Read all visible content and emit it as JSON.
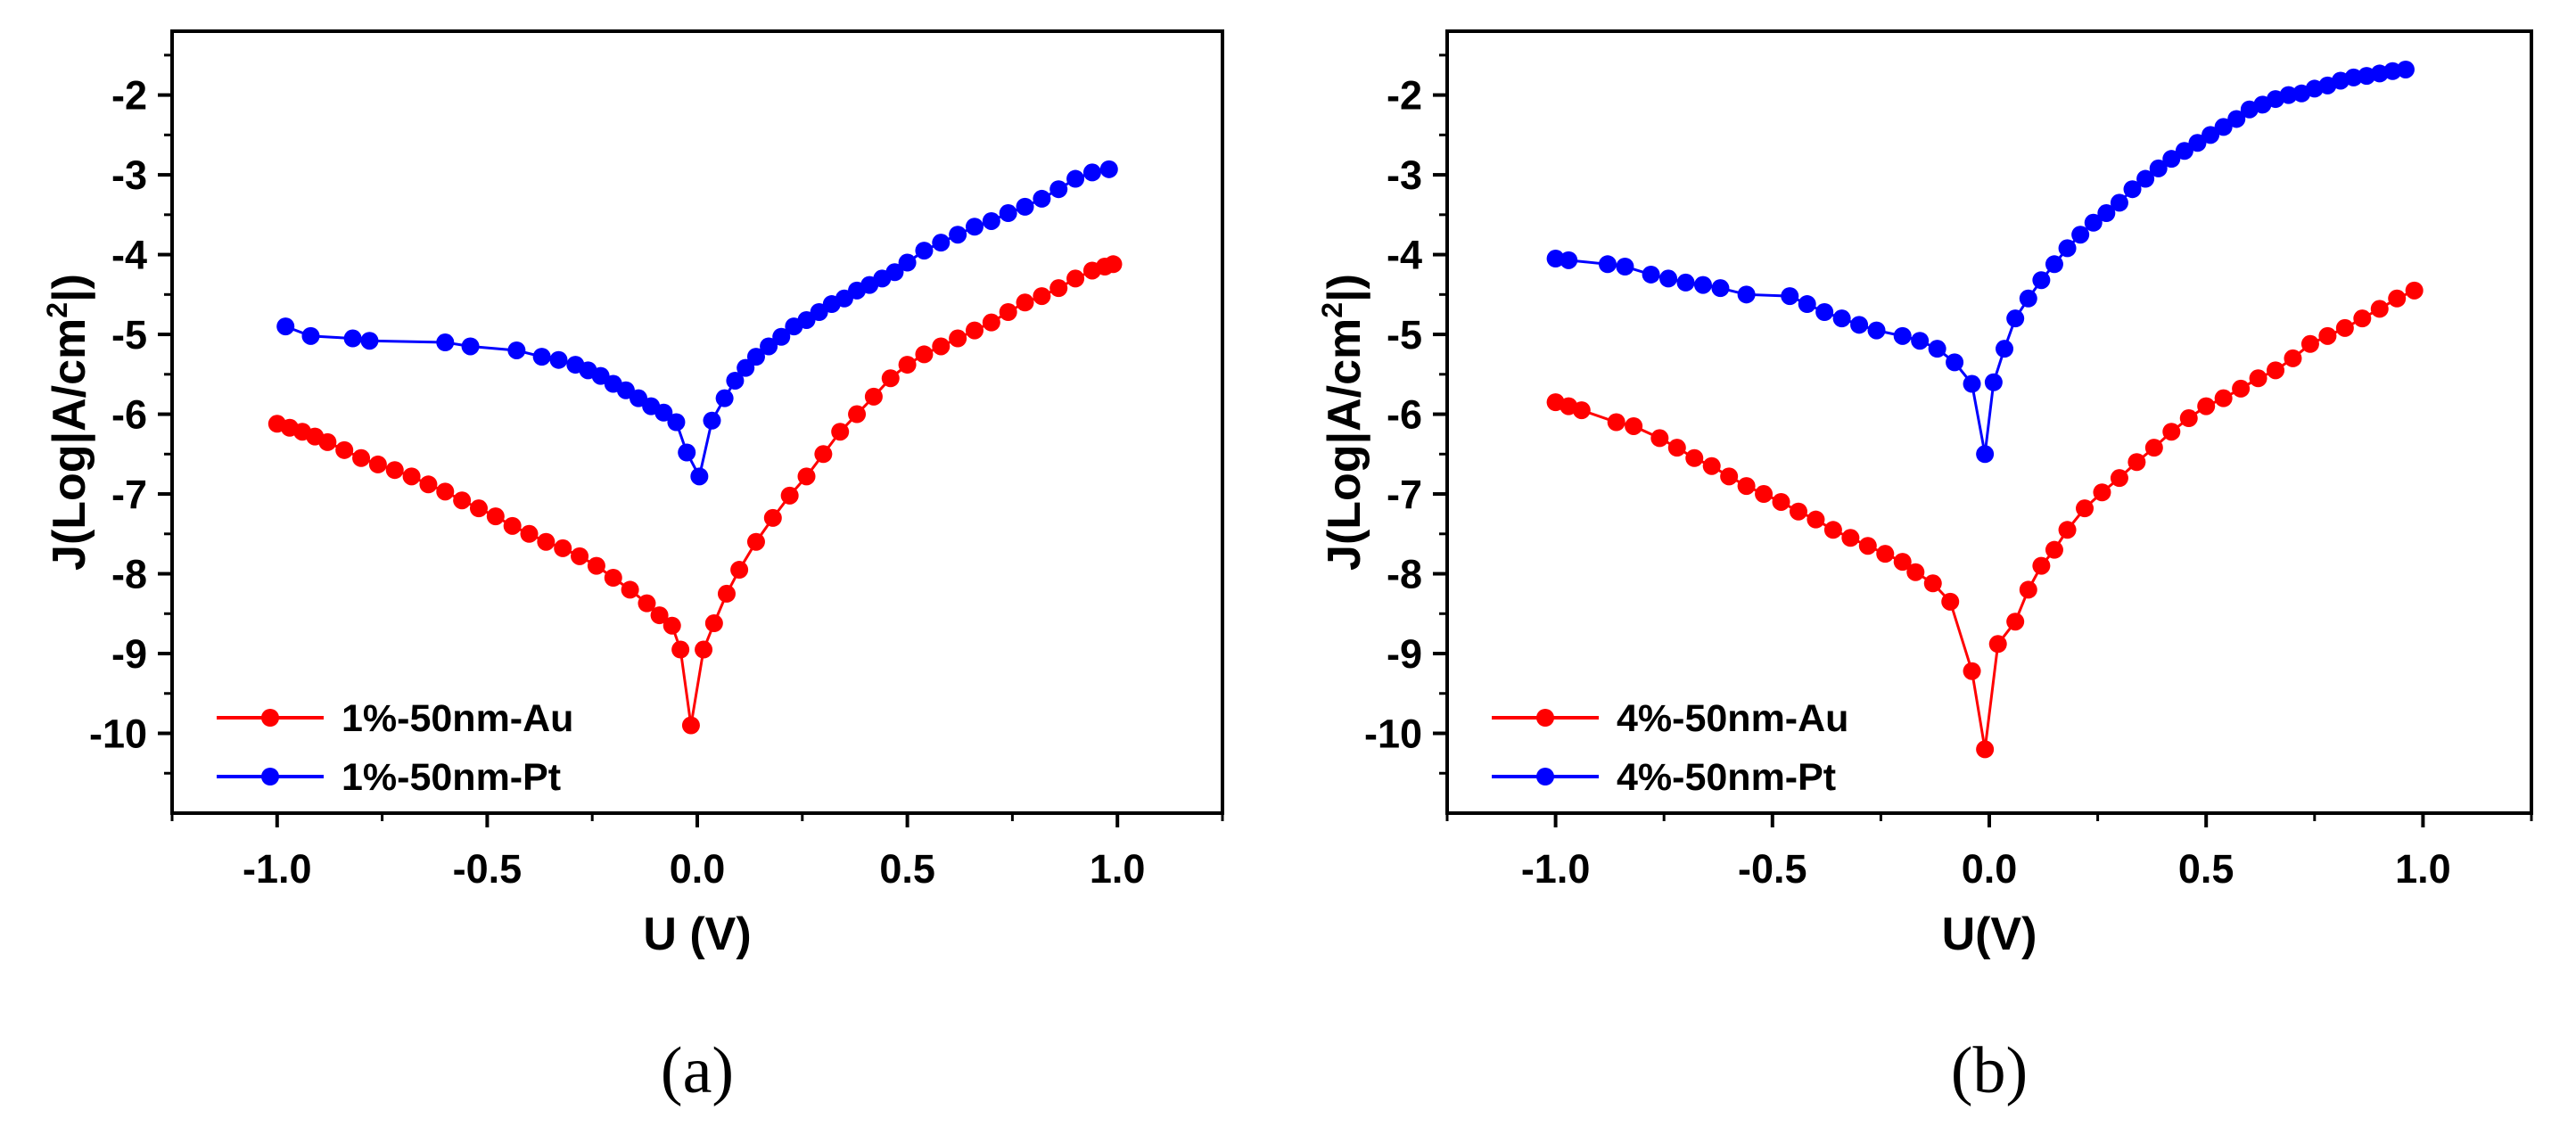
{
  "chart_data": [
    {
      "type": "line",
      "panel_label": "(a)",
      "xlabel": "U (V)",
      "ylabel": {
        "prefix": "J(Log|A/cm",
        "sup": "2",
        "suffix": "|)"
      },
      "xlim": [
        -1.25,
        1.25
      ],
      "ylim": [
        -11,
        -1.2
      ],
      "xticks": [
        -1.0,
        -0.5,
        0.0,
        0.5,
        1.0
      ],
      "xtick_labels": [
        "-1.0",
        "-0.5",
        "0.0",
        "0.5",
        "1.0"
      ],
      "yticks": [
        -2,
        -3,
        -4,
        -5,
        -6,
        -7,
        -8,
        -9,
        -10
      ],
      "ytick_labels": [
        "-2",
        "-3",
        "-4",
        "-5",
        "-6",
        "-7",
        "-8",
        "-9",
        "-10"
      ],
      "grid": false,
      "legend_position": "bottom-left",
      "series": [
        {
          "name": "1%-50nm-Au",
          "color": "#ff0000",
          "x": [
            -1.0,
            -0.97,
            -0.94,
            -0.91,
            -0.88,
            -0.84,
            -0.8,
            -0.76,
            -0.72,
            -0.68,
            -0.64,
            -0.6,
            -0.56,
            -0.52,
            -0.48,
            -0.44,
            -0.4,
            -0.36,
            -0.32,
            -0.28,
            -0.24,
            -0.2,
            -0.16,
            -0.12,
            -0.09,
            -0.06,
            -0.04,
            -0.015,
            0.015,
            0.04,
            0.07,
            0.1,
            0.14,
            0.18,
            0.22,
            0.26,
            0.3,
            0.34,
            0.38,
            0.42,
            0.46,
            0.5,
            0.54,
            0.58,
            0.62,
            0.66,
            0.7,
            0.74,
            0.78,
            0.82,
            0.86,
            0.9,
            0.94,
            0.97,
            0.99
          ],
          "y": [
            -6.12,
            -6.17,
            -6.22,
            -6.28,
            -6.35,
            -6.45,
            -6.55,
            -6.63,
            -6.7,
            -6.78,
            -6.88,
            -6.97,
            -7.08,
            -7.18,
            -7.28,
            -7.4,
            -7.5,
            -7.6,
            -7.68,
            -7.78,
            -7.9,
            -8.05,
            -8.2,
            -8.37,
            -8.52,
            -8.65,
            -8.95,
            -9.9,
            -8.95,
            -8.62,
            -8.25,
            -7.95,
            -7.6,
            -7.3,
            -7.02,
            -6.78,
            -6.5,
            -6.22,
            -6.0,
            -5.78,
            -5.55,
            -5.38,
            -5.25,
            -5.15,
            -5.05,
            -4.95,
            -4.85,
            -4.72,
            -4.6,
            -4.52,
            -4.42,
            -4.3,
            -4.2,
            -4.15,
            -4.12
          ]
        },
        {
          "name": "1%-50nm-Pt",
          "color": "#0000ff",
          "x": [
            -0.98,
            -0.92,
            -0.82,
            -0.78,
            -0.6,
            -0.54,
            -0.43,
            -0.37,
            -0.33,
            -0.29,
            -0.26,
            -0.23,
            -0.2,
            -0.17,
            -0.14,
            -0.11,
            -0.08,
            -0.05,
            -0.025,
            0.005,
            0.035,
            0.065,
            0.09,
            0.115,
            0.14,
            0.17,
            0.2,
            0.23,
            0.26,
            0.29,
            0.32,
            0.35,
            0.38,
            0.41,
            0.44,
            0.47,
            0.5,
            0.54,
            0.58,
            0.62,
            0.66,
            0.7,
            0.74,
            0.78,
            0.82,
            0.86,
            0.9,
            0.94,
            0.98
          ],
          "y": [
            -4.9,
            -5.02,
            -5.05,
            -5.08,
            -5.1,
            -5.15,
            -5.2,
            -5.28,
            -5.32,
            -5.38,
            -5.45,
            -5.52,
            -5.62,
            -5.7,
            -5.8,
            -5.9,
            -5.98,
            -6.1,
            -6.48,
            -6.78,
            -6.08,
            -5.8,
            -5.58,
            -5.42,
            -5.28,
            -5.15,
            -5.03,
            -4.9,
            -4.82,
            -4.72,
            -4.62,
            -4.55,
            -4.45,
            -4.38,
            -4.3,
            -4.22,
            -4.1,
            -3.95,
            -3.85,
            -3.75,
            -3.65,
            -3.58,
            -3.48,
            -3.4,
            -3.3,
            -3.18,
            -3.05,
            -2.97,
            -2.93
          ]
        }
      ]
    },
    {
      "type": "line",
      "panel_label": "(b)",
      "xlabel": "U(V)",
      "ylabel": {
        "prefix": "J(Log|A/cm",
        "sup": "2",
        "suffix": "|)"
      },
      "xlim": [
        -1.25,
        1.25
      ],
      "ylim": [
        -11,
        -1.2
      ],
      "xticks": [
        -1.0,
        -0.5,
        0.0,
        0.5,
        1.0
      ],
      "xtick_labels": [
        "-1.0",
        "-0.5",
        "0.0",
        "0.5",
        "1.0"
      ],
      "yticks": [
        -2,
        -3,
        -4,
        -5,
        -6,
        -7,
        -8,
        -9,
        -10
      ],
      "ytick_labels": [
        "-2",
        "-3",
        "-4",
        "-5",
        "-6",
        "-7",
        "-8",
        "-9",
        "-10"
      ],
      "grid": false,
      "legend_position": "bottom-left",
      "series": [
        {
          "name": "4%-50nm-Au",
          "color": "#ff0000",
          "x": [
            -1.0,
            -0.97,
            -0.94,
            -0.86,
            -0.82,
            -0.76,
            -0.72,
            -0.68,
            -0.64,
            -0.6,
            -0.56,
            -0.52,
            -0.48,
            -0.44,
            -0.4,
            -0.36,
            -0.32,
            -0.28,
            -0.24,
            -0.2,
            -0.17,
            -0.13,
            -0.09,
            -0.04,
            -0.01,
            0.02,
            0.06,
            0.09,
            0.12,
            0.15,
            0.18,
            0.22,
            0.26,
            0.3,
            0.34,
            0.38,
            0.42,
            0.46,
            0.5,
            0.54,
            0.58,
            0.62,
            0.66,
            0.7,
            0.74,
            0.78,
            0.82,
            0.86,
            0.9,
            0.94,
            0.98
          ],
          "y": [
            -5.85,
            -5.9,
            -5.95,
            -6.1,
            -6.15,
            -6.3,
            -6.42,
            -6.55,
            -6.65,
            -6.78,
            -6.9,
            -7.0,
            -7.1,
            -7.22,
            -7.32,
            -7.45,
            -7.55,
            -7.65,
            -7.75,
            -7.85,
            -7.98,
            -8.12,
            -8.35,
            -9.22,
            -10.2,
            -8.88,
            -8.6,
            -8.2,
            -7.9,
            -7.7,
            -7.45,
            -7.18,
            -6.98,
            -6.8,
            -6.6,
            -6.42,
            -6.22,
            -6.05,
            -5.9,
            -5.8,
            -5.68,
            -5.55,
            -5.45,
            -5.3,
            -5.12,
            -5.02,
            -4.92,
            -4.8,
            -4.68,
            -4.55,
            -4.45
          ]
        },
        {
          "name": "4%-50nm-Pt",
          "color": "#0000ff",
          "x": [
            -1.0,
            -0.97,
            -0.88,
            -0.84,
            -0.78,
            -0.74,
            -0.7,
            -0.66,
            -0.62,
            -0.56,
            -0.46,
            -0.42,
            -0.38,
            -0.34,
            -0.3,
            -0.26,
            -0.2,
            -0.16,
            -0.12,
            -0.08,
            -0.04,
            -0.01,
            0.01,
            0.035,
            0.06,
            0.09,
            0.12,
            0.15,
            0.18,
            0.21,
            0.24,
            0.27,
            0.3,
            0.33,
            0.36,
            0.39,
            0.42,
            0.45,
            0.48,
            0.51,
            0.54,
            0.57,
            0.6,
            0.63,
            0.66,
            0.69,
            0.72,
            0.75,
            0.78,
            0.81,
            0.84,
            0.87,
            0.9,
            0.93,
            0.96
          ],
          "y": [
            -4.05,
            -4.07,
            -4.12,
            -4.15,
            -4.25,
            -4.3,
            -4.35,
            -4.38,
            -4.42,
            -4.5,
            -4.52,
            -4.62,
            -4.72,
            -4.8,
            -4.88,
            -4.95,
            -5.02,
            -5.08,
            -5.18,
            -5.35,
            -5.62,
            -6.5,
            -5.6,
            -5.18,
            -4.8,
            -4.55,
            -4.32,
            -4.12,
            -3.92,
            -3.75,
            -3.6,
            -3.48,
            -3.35,
            -3.18,
            -3.05,
            -2.92,
            -2.8,
            -2.7,
            -2.6,
            -2.5,
            -2.4,
            -2.3,
            -2.18,
            -2.12,
            -2.05,
            -2.0,
            -1.98,
            -1.92,
            -1.88,
            -1.82,
            -1.78,
            -1.76,
            -1.73,
            -1.7,
            -1.68
          ]
        }
      ]
    }
  ]
}
